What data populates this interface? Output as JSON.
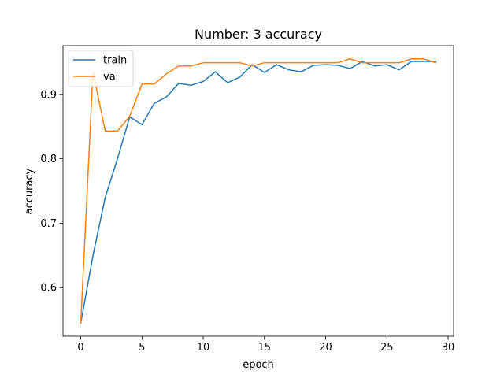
{
  "chart_data": {
    "type": "line",
    "title": "Number: 3 accuracy",
    "xlabel": "epoch",
    "ylabel": "accuracy",
    "xlim": [
      -1.45,
      30.45
    ],
    "ylim": [
      0.5245,
      0.9755
    ],
    "xticks": [
      0,
      5,
      10,
      15,
      20,
      25,
      30
    ],
    "yticks": [
      0.6,
      0.7,
      0.8,
      0.9
    ],
    "xtick_labels": [
      "0",
      "5",
      "10",
      "15",
      "20",
      "25",
      "30"
    ],
    "ytick_labels": [
      "0.6",
      "0.7",
      "0.8",
      "0.9"
    ],
    "grid": false,
    "legend_position": "top-left",
    "x": [
      0,
      1,
      2,
      3,
      4,
      5,
      6,
      7,
      8,
      9,
      10,
      11,
      12,
      13,
      14,
      15,
      16,
      17,
      18,
      19,
      20,
      21,
      22,
      23,
      24,
      25,
      26,
      27,
      28,
      29
    ],
    "series": [
      {
        "name": "train",
        "color": "#1f77b4",
        "values": [
          0.545,
          0.65,
          0.74,
          0.8,
          0.865,
          0.853,
          0.886,
          0.896,
          0.917,
          0.914,
          0.92,
          0.935,
          0.918,
          0.927,
          0.946,
          0.934,
          0.946,
          0.938,
          0.935,
          0.945,
          0.946,
          0.945,
          0.94,
          0.951,
          0.944,
          0.946,
          0.938,
          0.951,
          0.951,
          0.951
        ]
      },
      {
        "name": "val",
        "color": "#ff7f0e",
        "values": [
          0.545,
          0.935,
          0.843,
          0.843,
          0.866,
          0.916,
          0.916,
          0.932,
          0.944,
          0.944,
          0.949,
          0.949,
          0.949,
          0.949,
          0.944,
          0.949,
          0.949,
          0.949,
          0.949,
          0.949,
          0.949,
          0.949,
          0.955,
          0.949,
          0.949,
          0.949,
          0.949,
          0.955,
          0.955,
          0.949
        ]
      }
    ]
  }
}
